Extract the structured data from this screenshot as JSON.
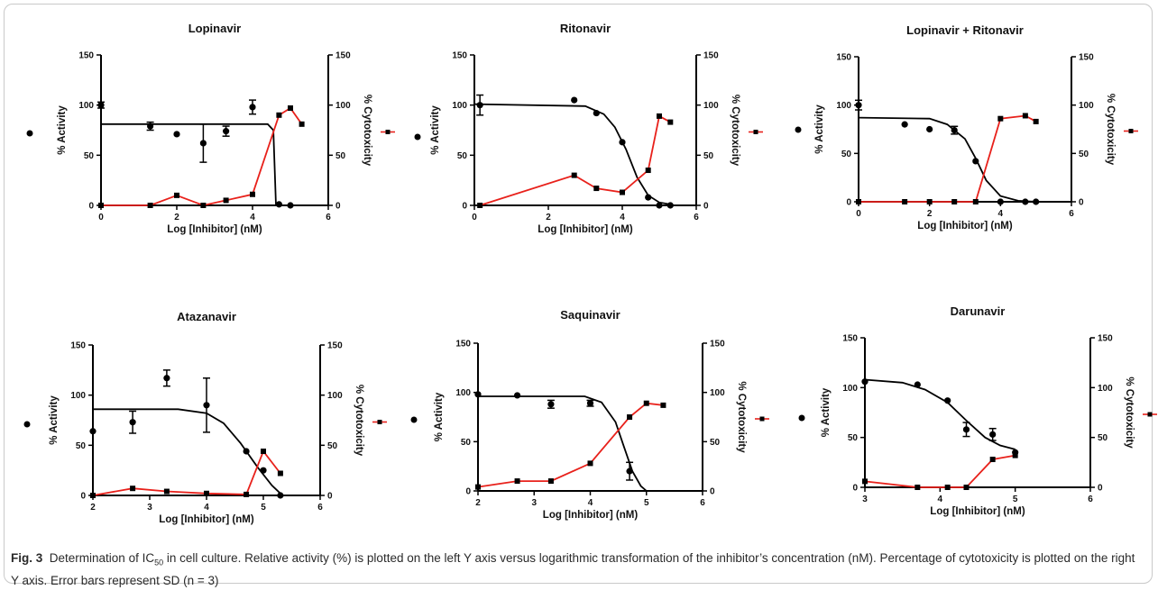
{
  "caption": {
    "label": "Fig. 3",
    "text_before_sub": "Determination of IC",
    "sub": "50",
    "text_after_sub": " in cell culture. Relative activity (%) is plotted on the left Y axis versus logarithmic transformation of the inhibitor’s concentration (nM). Percentage of cytotoxicity is plotted on the right Y axis. Error bars represent SD (n = 3)"
  },
  "colors": {
    "activity": "#000000",
    "cytotoxicity": "#e8211b"
  },
  "chart_data": [
    {
      "type": "scatter",
      "title": "Lopinavir",
      "xlabel": "Log [Inhibitor] (nM)",
      "ylabel": "% Activity",
      "y2label": "% Cytotoxicity",
      "xlim": [
        0,
        6
      ],
      "ylim": [
        0,
        150
      ],
      "y2lim": [
        0,
        150
      ],
      "xticks": [
        "0",
        "2",
        "4",
        "6"
      ],
      "yticks": [
        "0",
        "50",
        "100",
        "150"
      ],
      "y2ticks": [
        "0",
        "50",
        "100",
        "150"
      ],
      "series": [
        {
          "role": "activity",
          "x": [
            0,
            1.3,
            2,
            2.7,
            3.3,
            4,
            4.7,
            5
          ],
          "y": [
            100,
            79,
            71,
            62,
            74,
            98,
            1,
            0
          ],
          "err": [
            3,
            4,
            0,
            19,
            5,
            7,
            0,
            0
          ]
        },
        {
          "role": "cytotoxicity",
          "x": [
            0,
            1.3,
            2,
            2.7,
            3.3,
            4,
            4.7,
            5,
            5.3
          ],
          "y": [
            0,
            0,
            10,
            0,
            5,
            11,
            90,
            97,
            81
          ],
          "err": []
        }
      ],
      "fit": [
        [
          0,
          81
        ],
        [
          4.4,
          81
        ],
        [
          4.55,
          75
        ],
        [
          4.62,
          0
        ]
      ]
    },
    {
      "type": "scatter",
      "title": "Ritonavir",
      "xlabel": "Log [Inhibitor] (nM)",
      "ylabel": "% Activity",
      "y2label": "% Cytotoxicity",
      "xlim": [
        0,
        6
      ],
      "ylim": [
        0,
        150
      ],
      "y2lim": [
        0,
        150
      ],
      "xticks": [
        "0",
        "2",
        "4",
        "6"
      ],
      "yticks": [
        "0",
        "50",
        "100",
        "150"
      ],
      "y2ticks": [
        "0",
        "50",
        "100",
        "150"
      ],
      "series": [
        {
          "role": "activity",
          "x": [
            0.15,
            2.7,
            3.3,
            4,
            4.7,
            5,
            5.3
          ],
          "y": [
            100,
            105,
            92,
            63,
            8,
            0,
            0
          ],
          "err": [
            10,
            0,
            0,
            0,
            0,
            0,
            0
          ]
        },
        {
          "role": "cytotoxicity",
          "x": [
            0.15,
            2.7,
            3.3,
            4,
            4.7,
            5,
            5.3
          ],
          "y": [
            0,
            30,
            17,
            13,
            35,
            89,
            83
          ],
          "err": []
        }
      ],
      "fit": [
        [
          0,
          101
        ],
        [
          3,
          99
        ],
        [
          3.5,
          91
        ],
        [
          3.8,
          78
        ],
        [
          4.1,
          56
        ],
        [
          4.4,
          28
        ],
        [
          4.7,
          10
        ],
        [
          5,
          3
        ],
        [
          5.3,
          1
        ]
      ]
    },
    {
      "type": "scatter",
      "title": "Lopinavir + Ritonavir",
      "xlabel": "Log [Inhibitor] (nM)",
      "ylabel": "% Activity",
      "y2label": "% Cytotoxicity",
      "xlim": [
        0,
        6
      ],
      "ylim": [
        0,
        150
      ],
      "y2lim": [
        0,
        150
      ],
      "xticks": [
        "0",
        "2",
        "4",
        "6"
      ],
      "yticks": [
        "0",
        "50",
        "100",
        "150"
      ],
      "y2ticks": [
        "0",
        "50",
        "100",
        "150"
      ],
      "series": [
        {
          "role": "activity",
          "x": [
            0,
            1.3,
            2,
            2.7,
            3.3,
            4,
            4.7,
            5
          ],
          "y": [
            100,
            80,
            75,
            74,
            42,
            0,
            0,
            0
          ],
          "err": [
            5,
            0,
            0,
            4,
            0,
            0,
            0,
            0
          ]
        },
        {
          "role": "cytotoxicity",
          "x": [
            0,
            1.3,
            2,
            2.7,
            3.3,
            4,
            4.7,
            5
          ],
          "y": [
            0,
            0,
            0,
            0,
            0,
            86,
            89,
            83
          ],
          "err": []
        }
      ],
      "fit": [
        [
          0,
          87
        ],
        [
          2,
          86
        ],
        [
          2.5,
          80
        ],
        [
          3,
          65
        ],
        [
          3.3,
          45
        ],
        [
          3.6,
          22
        ],
        [
          4,
          6
        ],
        [
          4.5,
          1
        ],
        [
          5,
          0
        ]
      ]
    },
    {
      "type": "scatter",
      "title": "Atazanavir",
      "xlabel": "Log [Inhibitor] (nM)",
      "ylabel": "% Activity",
      "y2label": "% Cytotoxicity",
      "xlim": [
        2,
        6
      ],
      "ylim": [
        0,
        150
      ],
      "y2lim": [
        0,
        150
      ],
      "xticks": [
        "2",
        "3",
        "4",
        "5",
        "6"
      ],
      "yticks": [
        "0",
        "50",
        "100",
        "150"
      ],
      "y2ticks": [
        "0",
        "50",
        "100",
        "150"
      ],
      "series": [
        {
          "role": "activity",
          "x": [
            2,
            2.7,
            3.3,
            4,
            4.7,
            5,
            5.3
          ],
          "y": [
            64,
            73,
            117,
            90,
            44,
            25,
            0
          ],
          "err": [
            0,
            11,
            8,
            27,
            0,
            0,
            0
          ]
        },
        {
          "role": "cytotoxicity",
          "x": [
            2,
            2.7,
            3.3,
            4,
            4.7,
            5,
            5.3
          ],
          "y": [
            0,
            7,
            4,
            2,
            1,
            44,
            22
          ],
          "err": []
        }
      ],
      "fit": [
        [
          2,
          86
        ],
        [
          3.5,
          86
        ],
        [
          4,
          82
        ],
        [
          4.3,
          72
        ],
        [
          4.6,
          52
        ],
        [
          4.9,
          28
        ],
        [
          5.15,
          10
        ],
        [
          5.3,
          2
        ]
      ]
    },
    {
      "type": "scatter",
      "title": "Saquinavir",
      "xlabel": "Log [Inhibitor] (nM)",
      "ylabel": "% Activity",
      "y2label": "% Cytotoxicity",
      "xlim": [
        2,
        6
      ],
      "ylim": [
        0,
        150
      ],
      "y2lim": [
        0,
        150
      ],
      "xticks": [
        "2",
        "3",
        "4",
        "5",
        "6"
      ],
      "yticks": [
        "0",
        "50",
        "100",
        "150"
      ],
      "y2ticks": [
        "0",
        "50",
        "100",
        "150"
      ],
      "series": [
        {
          "role": "activity",
          "x": [
            2,
            2.7,
            3.3,
            4,
            4.7
          ],
          "y": [
            98,
            97,
            88,
            89,
            20
          ],
          "err": [
            0,
            0,
            4,
            3,
            9
          ]
        },
        {
          "role": "cytotoxicity",
          "x": [
            2,
            2.7,
            3.3,
            4,
            4.7,
            5,
            5.3
          ],
          "y": [
            4,
            10,
            10,
            28,
            75,
            89,
            87
          ],
          "err": []
        }
      ],
      "fit": [
        [
          2,
          96
        ],
        [
          3.9,
          96
        ],
        [
          4.2,
          90
        ],
        [
          4.45,
          70
        ],
        [
          4.6,
          45
        ],
        [
          4.75,
          20
        ],
        [
          4.9,
          5
        ],
        [
          5,
          0
        ]
      ]
    },
    {
      "type": "scatter",
      "title": "Darunavir",
      "xlabel": "Log [Inhibitor] (nM)",
      "ylabel": "% Activity",
      "y2label": "% Cytotoxicity",
      "xlim": [
        3,
        6
      ],
      "ylim": [
        0,
        150
      ],
      "y2lim": [
        0,
        150
      ],
      "xticks": [
        "3",
        "4",
        "5",
        "6"
      ],
      "yticks": [
        "0",
        "50",
        "100",
        "150"
      ],
      "y2ticks": [
        "0",
        "50",
        "100",
        "150"
      ],
      "series": [
        {
          "role": "activity",
          "x": [
            3,
            3.7,
            4.1,
            4.35,
            4.7,
            5
          ],
          "y": [
            106,
            103,
            87,
            58,
            53,
            35
          ],
          "err": [
            0,
            0,
            0,
            7,
            6,
            0
          ]
        },
        {
          "role": "cytotoxicity",
          "x": [
            3,
            3.7,
            4.1,
            4.35,
            4.7,
            5
          ],
          "y": [
            6,
            0,
            0,
            0,
            28,
            32
          ],
          "err": []
        }
      ],
      "fit": [
        [
          3,
          108
        ],
        [
          3.5,
          105
        ],
        [
          3.8,
          98
        ],
        [
          4.1,
          85
        ],
        [
          4.35,
          67
        ],
        [
          4.6,
          50
        ],
        [
          4.8,
          42
        ],
        [
          5,
          38
        ]
      ]
    }
  ]
}
